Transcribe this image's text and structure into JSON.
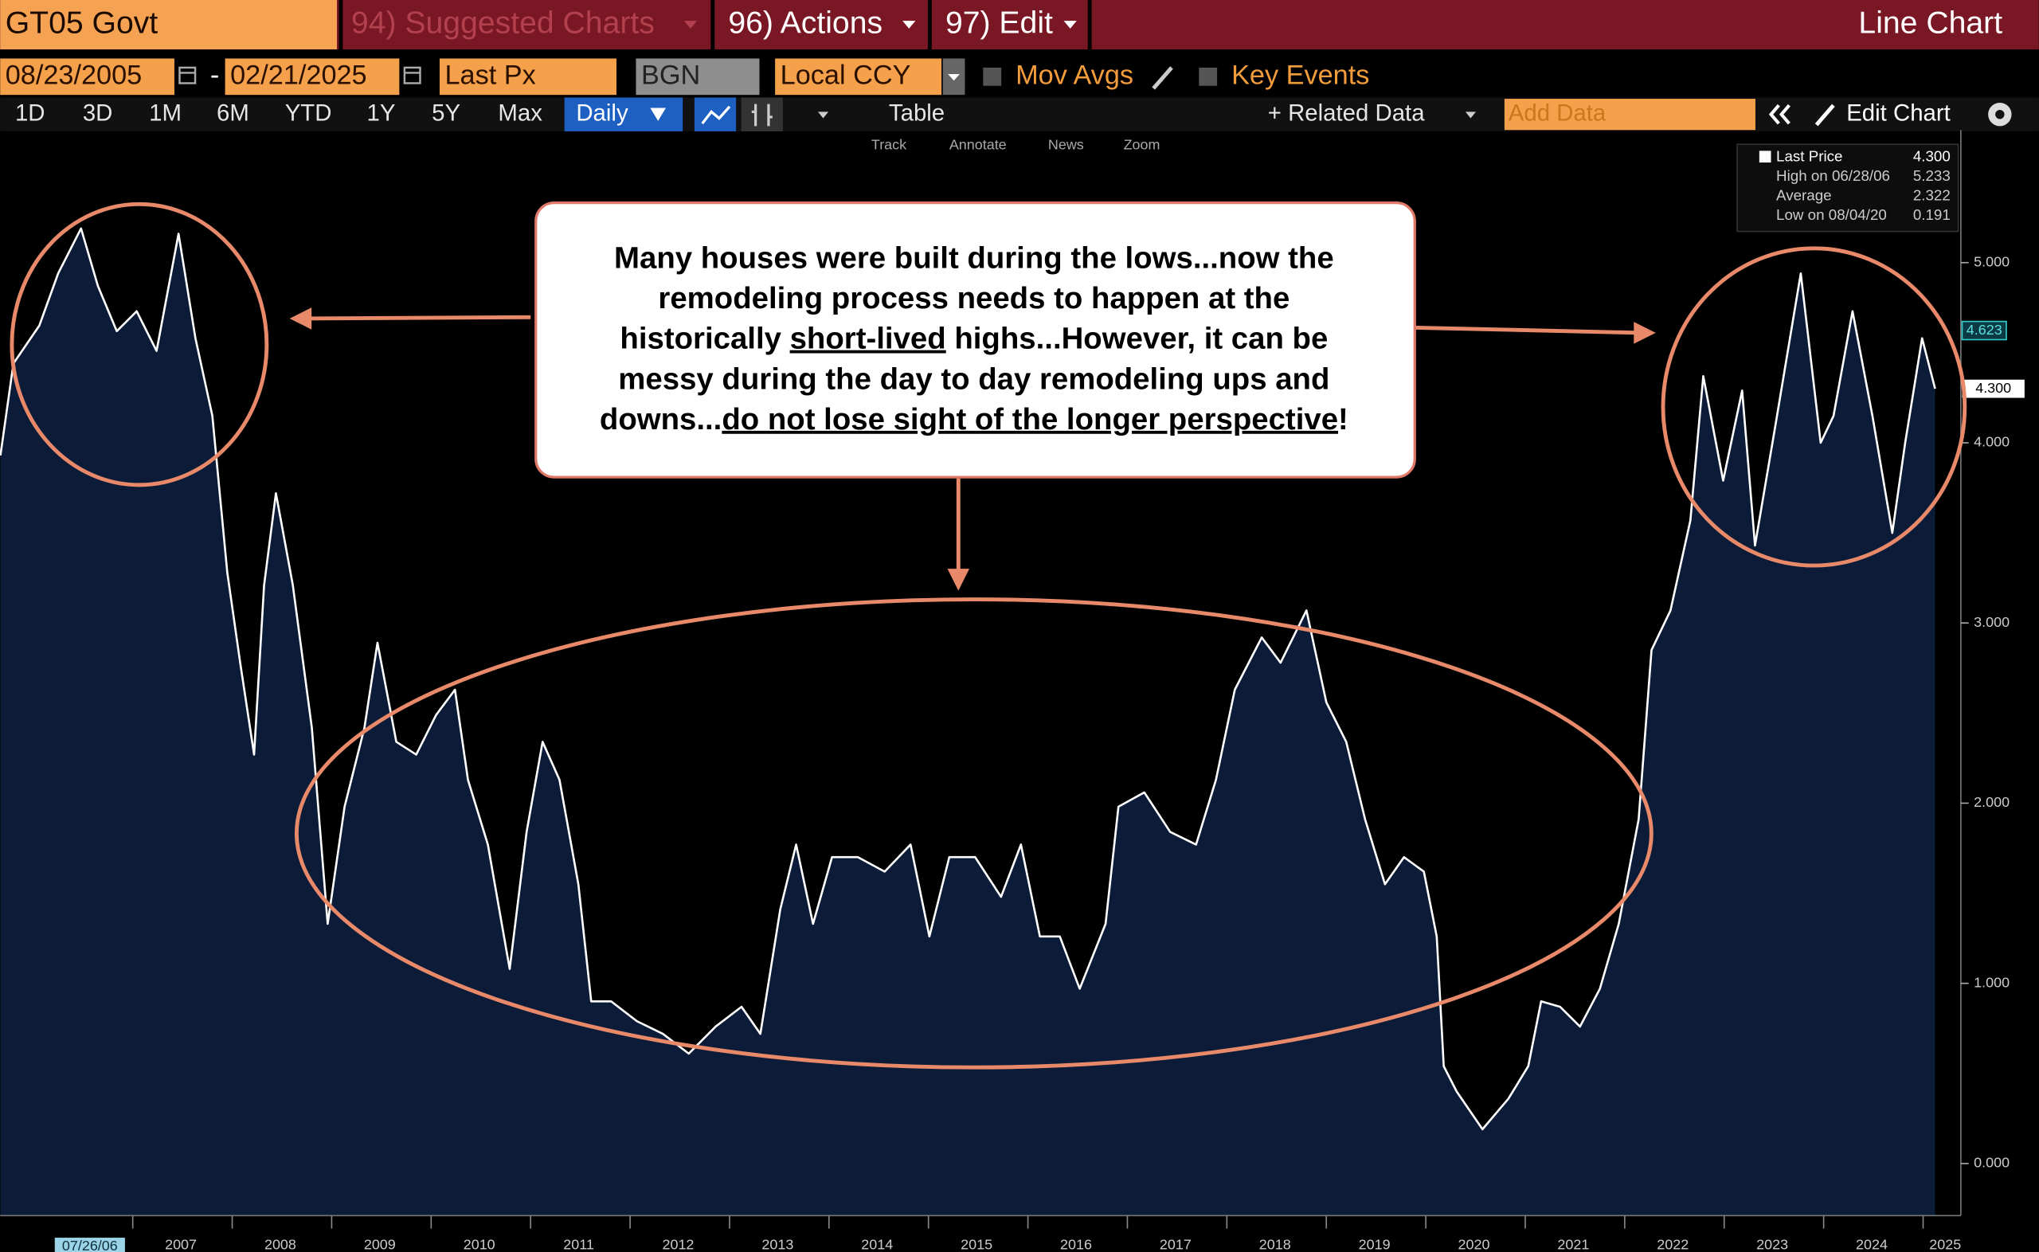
{
  "header": {
    "security": "GT05 Govt",
    "menus": [
      "94) Suggested Charts",
      "96) Actions",
      "97) Edit"
    ],
    "chart_type": "Line Chart"
  },
  "controls": {
    "start_date": "08/23/2005",
    "separator": "-",
    "end_date": "02/21/2025",
    "field": "Last Px",
    "source": "BGN",
    "currency": "Local CCY",
    "checkboxes": [
      "Mov Avgs",
      "Key Events"
    ]
  },
  "toolbar": {
    "ranges": [
      "1D",
      "3D",
      "1M",
      "6M",
      "YTD",
      "1Y",
      "5Y",
      "Max"
    ],
    "frequency": "Daily",
    "table": "Table",
    "related": "+ Related Data",
    "add_data": "Add Data",
    "edit": "Edit Chart",
    "tools": [
      "Track",
      "Annotate",
      "News",
      "Zoom"
    ]
  },
  "chart_data": {
    "type": "line",
    "x": [
      2005.67,
      2005.8,
      2006.06,
      2006.25,
      2006.48,
      2006.65,
      2006.84,
      2007.04,
      2007.24,
      2007.46,
      2007.63,
      2007.8,
      2007.95,
      2008.08,
      2008.22,
      2008.32,
      2008.44,
      2008.61,
      2008.8,
      2008.96,
      2009.13,
      2009.33,
      2009.46,
      2009.65,
      2009.85,
      2010.05,
      2010.24,
      2010.37,
      2010.57,
      2010.79,
      2010.96,
      2011.12,
      2011.29,
      2011.48,
      2011.61,
      2011.81,
      2012.07,
      2012.33,
      2012.59,
      2012.86,
      2013.12,
      2013.31,
      2013.51,
      2013.67,
      2013.84,
      2014.03,
      2014.29,
      2014.56,
      2014.82,
      2015.01,
      2015.21,
      2015.47,
      2015.73,
      2015.93,
      2016.12,
      2016.32,
      2016.52,
      2016.78,
      2016.91,
      2017.17,
      2017.43,
      2017.69,
      2017.89,
      2018.08,
      2018.35,
      2018.54,
      2018.8,
      2019.0,
      2019.2,
      2019.39,
      2019.59,
      2019.78,
      2019.98,
      2020.11,
      2020.18,
      2020.31,
      2020.57,
      2020.83,
      2021.03,
      2021.16,
      2021.35,
      2021.55,
      2021.75,
      2021.94,
      2022.14,
      2022.27,
      2022.46,
      2022.66,
      2022.79,
      2022.99,
      2023.18,
      2023.31,
      2023.51,
      2023.77,
      2023.97,
      2024.1,
      2024.29,
      2024.49,
      2024.69,
      2024.82,
      2024.99,
      2025.12
    ],
    "series": [
      {
        "name": "Last Price",
        "color": "#ffffff",
        "fill": "#0c1c38",
        "values": [
          3.93,
          4.44,
          4.65,
          4.94,
          5.19,
          4.87,
          4.62,
          4.73,
          4.51,
          5.16,
          4.58,
          4.15,
          3.28,
          2.78,
          2.27,
          3.21,
          3.72,
          3.21,
          2.42,
          1.33,
          1.98,
          2.42,
          2.89,
          2.34,
          2.27,
          2.49,
          2.63,
          2.13,
          1.77,
          1.08,
          1.84,
          2.34,
          2.13,
          1.55,
          0.9,
          0.9,
          0.79,
          0.72,
          0.61,
          0.76,
          0.87,
          0.72,
          1.41,
          1.77,
          1.33,
          1.7,
          1.7,
          1.62,
          1.77,
          1.26,
          1.7,
          1.7,
          1.48,
          1.77,
          1.26,
          1.26,
          0.97,
          1.33,
          1.98,
          2.06,
          1.84,
          1.77,
          2.13,
          2.63,
          2.92,
          2.78,
          3.07,
          2.56,
          2.34,
          1.91,
          1.55,
          1.7,
          1.62,
          1.26,
          0.54,
          0.4,
          0.19,
          0.36,
          0.54,
          0.9,
          0.87,
          0.76,
          0.97,
          1.33,
          1.91,
          2.85,
          3.07,
          3.57,
          4.37,
          3.79,
          4.29,
          3.43,
          4.08,
          4.94,
          4.0,
          4.15,
          4.73,
          4.15,
          3.5,
          4.0,
          4.58,
          4.3
        ]
      }
    ],
    "xlim": [
      2005.667,
      2025.34
    ],
    "xticks": [
      2007,
      2008,
      2009,
      2010,
      2011,
      2012,
      2013,
      2014,
      2015,
      2016,
      2017,
      2018,
      2019,
      2020,
      2021,
      2022,
      2023,
      2024,
      2025
    ],
    "ylim": [
      -0.289,
      5.736
    ],
    "yticks": [
      {
        "value": 0,
        "label": "0.000"
      },
      {
        "value": 1,
        "label": "1.000"
      },
      {
        "value": 2,
        "label": "2.000"
      },
      {
        "value": 3,
        "label": "3.000"
      },
      {
        "value": 4,
        "label": "4.000"
      },
      {
        "value": 5,
        "label": "5.000"
      }
    ],
    "cursor_date": "07/26/06",
    "last": {
      "value": 4.3,
      "label": "4.300"
    },
    "price_tags": [
      {
        "value": 4.623,
        "label": "4.623"
      }
    ],
    "stats": [
      {
        "name": "High on 06/28/06",
        "value": 5.233,
        "label": "5.233"
      },
      {
        "name": "Average",
        "value": 2.322,
        "label": "2.322"
      },
      {
        "name": "Low on 08/04/20",
        "value": 0.191,
        "label": "0.191"
      }
    ],
    "annotation": {
      "lines": [
        [
          {
            "text": "Many houses were built during the lows...now the",
            "underline": false
          }
        ],
        [
          {
            "text": "remodeling process needs to happen at the",
            "underline": false
          }
        ],
        [
          {
            "text": "historically ",
            "underline": false
          },
          {
            "text": "short-lived",
            "underline": true
          },
          {
            "text": " highs...However, it can be",
            "underline": false
          }
        ],
        [
          {
            "text": "messy during the day to day remodeling ups and",
            "underline": false
          }
        ],
        [
          {
            "text": "downs...",
            "underline": false
          },
          {
            "text": "do not lose sight of the longer perspective",
            "underline": true
          },
          {
            "text": "!",
            "underline": false
          }
        ]
      ]
    }
  }
}
